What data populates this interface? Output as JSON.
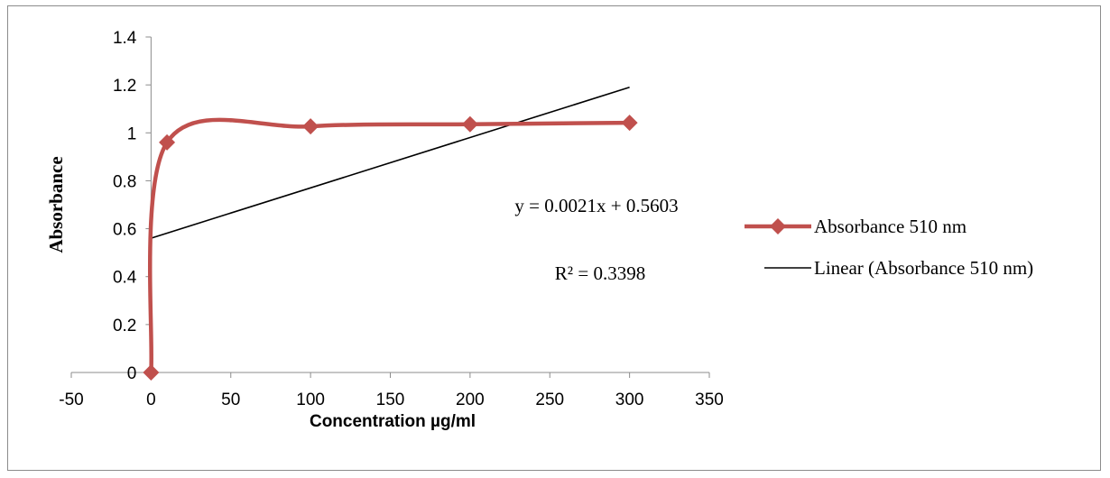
{
  "chart_data": {
    "type": "scatter",
    "xlabel": "Concentration µg/ml",
    "ylabel": "Absorbance",
    "xlim": [
      -50,
      350
    ],
    "ylim": [
      0,
      1.4
    ],
    "x_ticks": [
      "-50",
      "0",
      "50",
      "100",
      "150",
      "200",
      "250",
      "300",
      "350"
    ],
    "y_ticks": [
      "0",
      "0.2",
      "0.4",
      "0.6",
      "0.8",
      "1",
      "1.2",
      "1.4"
    ],
    "grid": false,
    "legend_position": "right",
    "series": [
      {
        "name": "Absorbance 510 nm",
        "style": "smoothed-line-with-diamond-markers",
        "color": "#c0504d",
        "x": [
          0,
          10,
          100,
          200,
          300
        ],
        "y": [
          0,
          0.96,
          1.027,
          1.036,
          1.042
        ]
      }
    ],
    "trendline": {
      "name": "Linear (Absorbance 510 nm)",
      "type": "linear",
      "color": "#000000",
      "slope": 0.0021,
      "intercept": 0.5603,
      "x_range": [
        0,
        300
      ],
      "equation": "y = 0.0021x + 0.5603",
      "r_squared": "R² = 0.3398"
    }
  }
}
